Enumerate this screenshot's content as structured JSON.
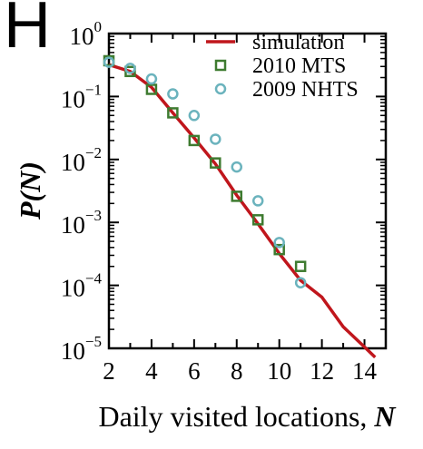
{
  "panel_label": "H",
  "chart_data": {
    "type": "line",
    "xlabel": "Daily visited locations, ",
    "xlabel_var": "N",
    "ylabel": "P(N)",
    "x_ticks": [
      2,
      4,
      6,
      8,
      10,
      12,
      14
    ],
    "y_ticks": [
      {
        "value": 1,
        "base": "10",
        "exp": "0"
      },
      {
        "value": 0.1,
        "base": "10",
        "exp": "−1"
      },
      {
        "value": 0.01,
        "base": "10",
        "exp": "−2"
      },
      {
        "value": 0.001,
        "base": "10",
        "exp": "−3"
      },
      {
        "value": 0.0001,
        "base": "10",
        "exp": "−4"
      },
      {
        "value": 1e-05,
        "base": "10",
        "exp": "−5"
      }
    ],
    "xlim": [
      2,
      15
    ],
    "ylim": [
      1e-05,
      1
    ],
    "yscale": "log",
    "legend_position": "top-right",
    "series": [
      {
        "name": "simulation",
        "style": "line",
        "color": "#c0161c",
        "x": [
          2,
          3,
          4,
          5,
          6,
          7,
          8,
          9,
          10,
          11,
          12,
          13,
          14,
          14.5
        ],
        "y": [
          0.32,
          0.25,
          0.14,
          0.055,
          0.022,
          0.0085,
          0.0027,
          0.00095,
          0.00032,
          0.00012,
          6.5e-05,
          2.2e-05,
          1.05e-05,
          7.2e-06
        ]
      },
      {
        "name": "2010 MTS",
        "style": "square",
        "color": "#3e7b30",
        "x": [
          2,
          3,
          4,
          5,
          6,
          7,
          8,
          9,
          10,
          11
        ],
        "y": [
          0.37,
          0.25,
          0.13,
          0.055,
          0.02,
          0.0088,
          0.0026,
          0.0011,
          0.00037,
          0.0002
        ]
      },
      {
        "name": "2009 NHTS",
        "style": "circle",
        "color": "#6bb3bd",
        "x": [
          2,
          3,
          4,
          5,
          6,
          7,
          8,
          9,
          10,
          11
        ],
        "y": [
          0.35,
          0.28,
          0.19,
          0.11,
          0.05,
          0.021,
          0.0076,
          0.0022,
          0.00048,
          0.00011
        ]
      }
    ]
  }
}
